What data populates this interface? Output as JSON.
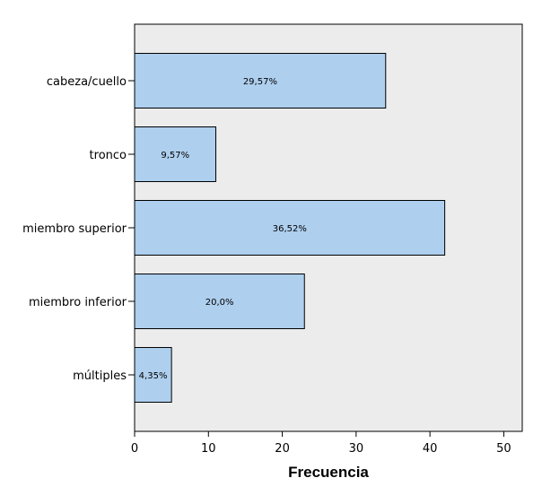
{
  "chart_data": {
    "type": "bar",
    "orientation": "horizontal",
    "categories": [
      "cabeza/cuello",
      "tronco",
      "miembro superior",
      "miembro inferior",
      "múltiples"
    ],
    "values": [
      34,
      11,
      42,
      23,
      5
    ],
    "data_labels": [
      "29,57%",
      "9,57%",
      "36,52%",
      "20,0%",
      "4,35%"
    ],
    "xlabel": "Frecuencia",
    "ylabel": "",
    "xlim": [
      0,
      52.5
    ],
    "xticks": [
      0,
      10,
      20,
      30,
      40,
      50
    ],
    "colors": {
      "bar_fill": "#aecfee",
      "bar_stroke": "#000000",
      "plot_background": "#ececec",
      "page_background": "#ffffff"
    },
    "grid": false,
    "legend": "none"
  }
}
